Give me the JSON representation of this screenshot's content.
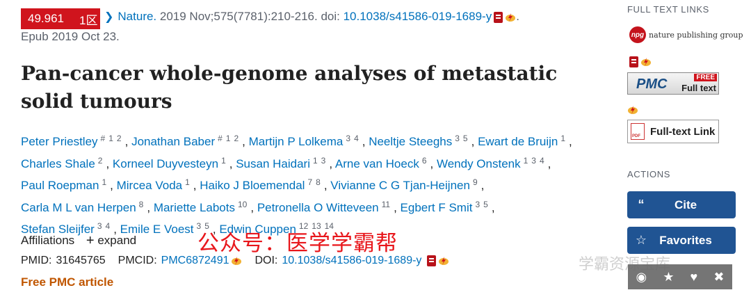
{
  "citation": {
    "impact_factor": "49.961",
    "quartile": "1区",
    "journal": "Nature.",
    "details": " 2019 Nov;575(7781):210-216. doi: ",
    "doi_link": "10.1038/s41586-019-1689-y",
    "trailing": ".",
    "epub": "Epub 2019 Oct 23."
  },
  "article": {
    "title": "Pan-cancer whole-genome analyses of metastatic solid tumours"
  },
  "authors": [
    {
      "name": "Peter Priestley",
      "sups": [
        "#",
        "1",
        "2"
      ]
    },
    {
      "name": "Jonathan Baber",
      "sups": [
        "#",
        "1",
        "2"
      ]
    },
    {
      "name": "Martijn P Lolkema",
      "sups": [
        "3",
        "4"
      ]
    },
    {
      "name": "Neeltje Steeghs",
      "sups": [
        "3",
        "5"
      ]
    },
    {
      "name": "Ewart de Bruijn",
      "sups": [
        "1"
      ]
    },
    {
      "name": "Charles Shale",
      "sups": [
        "2"
      ]
    },
    {
      "name": "Korneel Duyvesteyn",
      "sups": [
        "1"
      ]
    },
    {
      "name": "Susan Haidari",
      "sups": [
        "1",
        "3"
      ]
    },
    {
      "name": "Arne van Hoeck",
      "sups": [
        "6"
      ]
    },
    {
      "name": "Wendy Onstenk",
      "sups": [
        "1",
        "3",
        "4"
      ]
    },
    {
      "name": "Paul Roepman",
      "sups": [
        "1"
      ]
    },
    {
      "name": "Mircea Voda",
      "sups": [
        "1"
      ]
    },
    {
      "name": "Haiko J Bloemendal",
      "sups": [
        "7",
        "8"
      ]
    },
    {
      "name": "Vivianne C G Tjan-Heijnen",
      "sups": [
        "9"
      ]
    },
    {
      "name": "Carla M L van Herpen",
      "sups": [
        "8"
      ]
    },
    {
      "name": "Mariette Labots",
      "sups": [
        "10"
      ]
    },
    {
      "name": "Petronella O Witteveen",
      "sups": [
        "11"
      ]
    },
    {
      "name": "Egbert F Smit",
      "sups": [
        "3",
        "5"
      ]
    },
    {
      "name": "Stefan Sleijfer",
      "sups": [
        "3",
        "4"
      ]
    },
    {
      "name": "Emile E Voest",
      "sups": [
        "3",
        "5"
      ]
    },
    {
      "name": "Edwin Cuppen",
      "sups": [
        "12",
        "13",
        "14"
      ]
    }
  ],
  "author_line_breaks": [
    4,
    9,
    13,
    17
  ],
  "affiliations": {
    "label": "Affiliations",
    "expand": "expand"
  },
  "watermark_text": "公众号：医学学霸帮",
  "ids": {
    "pmid_label": "PMID:",
    "pmid": "31645765",
    "pmcid_label": "PMCID:",
    "pmcid": "PMC6872491",
    "doi_label": "DOI:",
    "doi": "10.1038/s41586-019-1689-y"
  },
  "free_pmc": "Free PMC article",
  "sidebar": {
    "full_text_links": "FULL TEXT LINKS",
    "npg_logo_text": "nature publishing group",
    "npg_logo_mark": "npg",
    "pmc_badge": {
      "pmc": "PMC",
      "free": "FREE",
      "full_text": "Full text"
    },
    "full_text_link": "Full-text Link",
    "actions_header": "ACTIONS",
    "cite": "Cite",
    "favorites": "Favorites"
  },
  "bottom_watermark": "学霸资源宝库",
  "icons": {
    "doc": "document-icon",
    "bolt": "lightning-icon",
    "quote": "quote-icon",
    "star": "star-icon",
    "eye": "eye-icon",
    "pin": "pin-icon",
    "heart": "heart-icon",
    "trash": "trash-icon"
  },
  "colors": {
    "link": "#0071bc",
    "impact_bg": "#d0141d",
    "action_bg": "#205493",
    "free_pmc": "#c05600"
  }
}
